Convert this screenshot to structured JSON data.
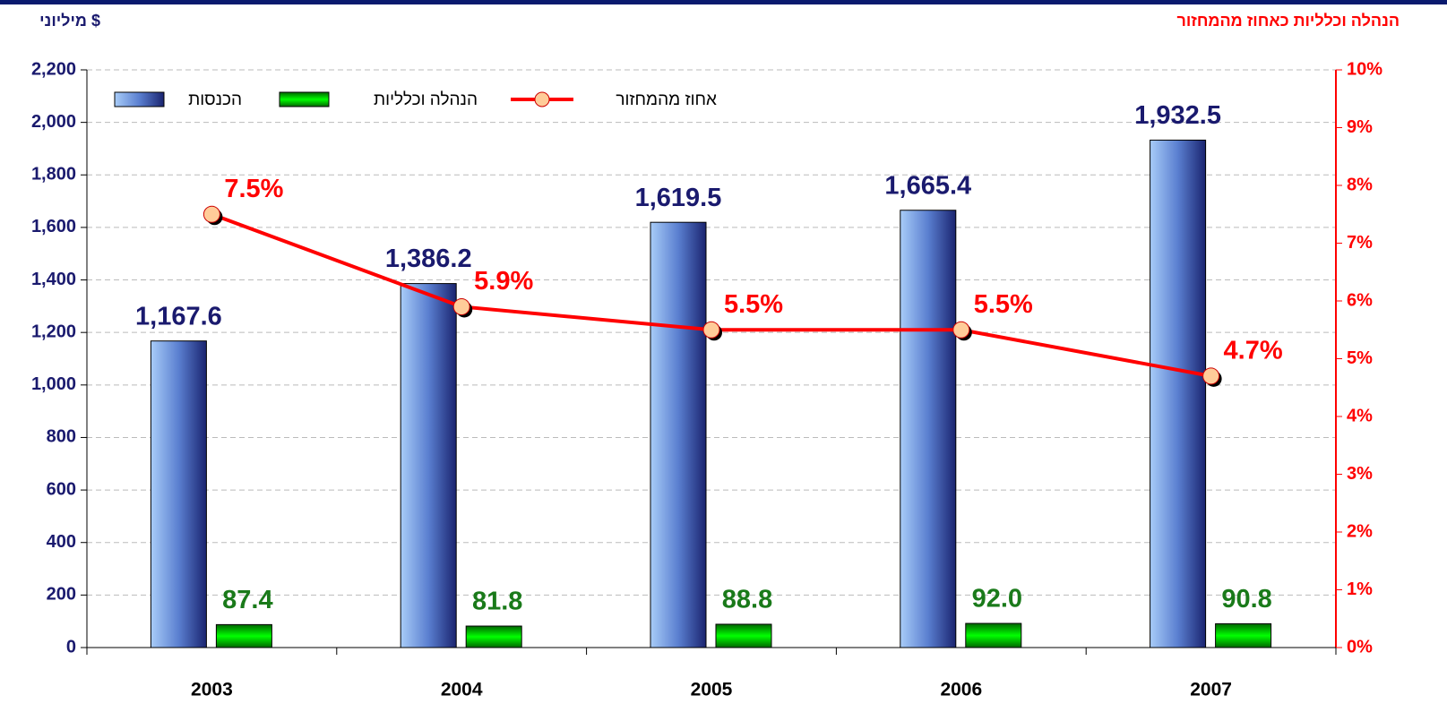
{
  "chart_data": {
    "type": "bar",
    "categories": [
      "2003",
      "2004",
      "2005",
      "2006",
      "2007"
    ],
    "ylabel": "מיליוני $",
    "y2label": "הנהלה וכלליות כאחוז מהמחזור",
    "series": [
      {
        "name": "הכנסות",
        "type": "bar",
        "color": "#3a55b0",
        "values": [
          1167.6,
          1386.2,
          1619.5,
          1665.4,
          1932.5
        ],
        "value_labels": [
          "1,167.6",
          "1,386.2",
          "1,619.5",
          "1,665.4",
          "1,932.5"
        ]
      },
      {
        "name": "הנהלה וכלליות",
        "type": "bar",
        "color": "#00cc00",
        "values": [
          87.4,
          81.8,
          88.8,
          92.0,
          90.8
        ],
        "value_labels": [
          "87.4",
          "81.8",
          "88.8",
          "92.0",
          "90.8"
        ]
      },
      {
        "name": "אחוז מהמחזור",
        "type": "line",
        "axis": "y2",
        "color": "#ff0000",
        "values": [
          7.5,
          5.9,
          5.5,
          5.5,
          4.7
        ],
        "value_labels": [
          "7.5%",
          "5.9%",
          "5.5%",
          "5.5%",
          "4.7%"
        ]
      }
    ],
    "ylim": [
      0,
      2200
    ],
    "yticks": [
      0,
      200,
      400,
      600,
      800,
      {
        "value": 1000,
        "label": "1,000"
      },
      {
        "value": 1200,
        "label": "1,200"
      },
      {
        "value": 1400,
        "label": "1,400"
      },
      {
        "value": 1600,
        "label": "1,600"
      },
      {
        "value": 1800,
        "label": "1,800"
      },
      {
        "value": 2000,
        "label": "2,000"
      },
      {
        "value": 2200,
        "label": "2,200"
      }
    ],
    "y2lim": [
      0,
      10
    ],
    "y2ticks": [
      {
        "value": 0,
        "label": "0%"
      },
      {
        "value": 1,
        "label": "1%"
      },
      {
        "value": 2,
        "label": "2%"
      },
      {
        "value": 3,
        "label": "3%"
      },
      {
        "value": 4,
        "label": "4%"
      },
      {
        "value": 5,
        "label": "5%"
      },
      {
        "value": 6,
        "label": "6%"
      },
      {
        "value": 7,
        "label": "7%"
      },
      {
        "value": 8,
        "label": "8%"
      },
      {
        "value": 9,
        "label": "9%"
      },
      {
        "value": 10,
        "label": "10%"
      }
    ],
    "grid": true
  }
}
